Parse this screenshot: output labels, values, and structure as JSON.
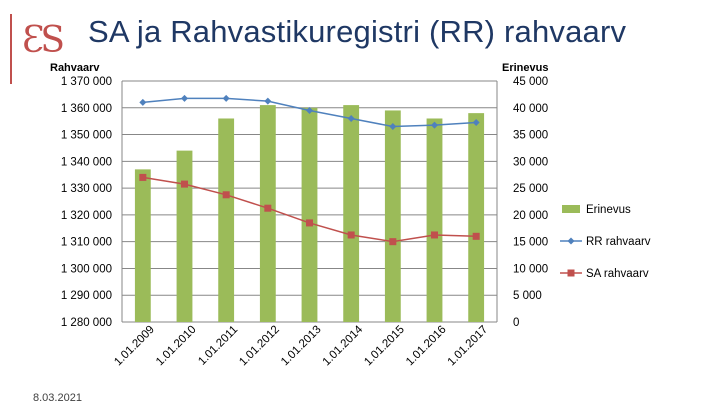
{
  "slide": {
    "title": "SA ja Rahvastikuregistri (RR) rahvaarv",
    "date": "8.03.2021",
    "logo_text": "ƐS"
  },
  "colors": {
    "bars": "#9bbb59",
    "rr_line": "#4f81bd",
    "sa_line": "#c0504d",
    "title": "#1f3864",
    "logo": "#c0504d"
  },
  "chart_data": {
    "type": "bar",
    "categories": [
      "1.01.2009",
      "1.01.2010",
      "1.01.2011",
      "1.01.2012",
      "1.01.2013",
      "1.01.2014",
      "1.01.2015",
      "1.01.2016",
      "1.01.2017"
    ],
    "left_axis": {
      "title": "Rahvaarv",
      "ylim": [
        1280000,
        1370000
      ],
      "ticks": [
        "1 280 000",
        "1 290 000",
        "1 300 000",
        "1 310 000",
        "1 320 000",
        "1 330 000",
        "1 340 000",
        "1 350 000",
        "1 360 000",
        "1 370 000"
      ]
    },
    "right_axis": {
      "title": "Erinevus",
      "ylim": [
        0,
        45000
      ],
      "ticks": [
        "0",
        "5 000",
        "10 000",
        "15 000",
        "20 000",
        "25 000",
        "30 000",
        "35 000",
        "40 000",
        "45 000"
      ]
    },
    "series": [
      {
        "name": "Erinevus",
        "kind": "bar",
        "axis": "right",
        "values": [
          28500,
          32000,
          38000,
          40500,
          40000,
          40500,
          39500,
          38000,
          39000
        ]
      },
      {
        "name": "RR rahvaarv",
        "kind": "line",
        "axis": "left",
        "marker": "diamond",
        "values": [
          1362000,
          1363500,
          1363500,
          1362500,
          1359000,
          1356000,
          1353000,
          1353500,
          1354500
        ]
      },
      {
        "name": "SA rahvaarv",
        "kind": "line",
        "axis": "left",
        "marker": "square",
        "values": [
          1334000,
          1331500,
          1327500,
          1322500,
          1317000,
          1312500,
          1310000,
          1312500,
          1312000
        ]
      }
    ],
    "grid": true,
    "legend": "right"
  }
}
